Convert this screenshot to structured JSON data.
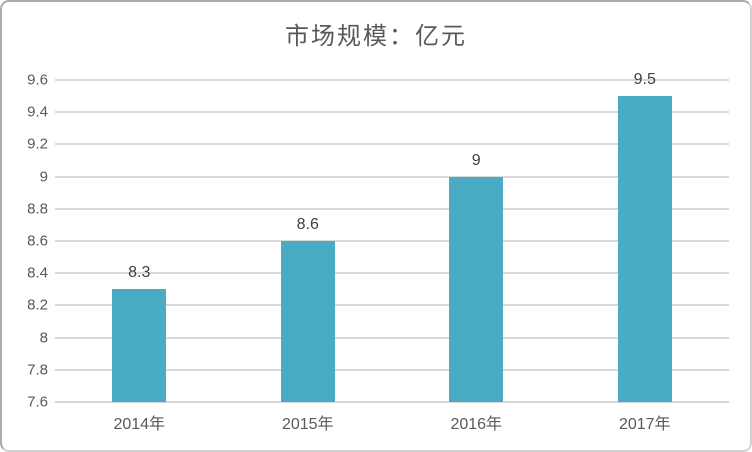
{
  "chart_data": {
    "type": "bar",
    "title": "市场规模：亿元",
    "categories": [
      "2014年",
      "2015年",
      "2016年",
      "2017年"
    ],
    "values": [
      8.3,
      8.6,
      9,
      9.5
    ],
    "data_labels": [
      "8.3",
      "8.6",
      "9",
      "9.5"
    ],
    "xlabel": "",
    "ylabel": "",
    "ylim": [
      7.6,
      9.6
    ],
    "y_tick_step": 0.2,
    "y_tick_labels": [
      "7.6",
      "7.8",
      "8",
      "8.2",
      "8.4",
      "8.6",
      "8.8",
      "9",
      "9.2",
      "9.4",
      "9.6"
    ],
    "grid": true,
    "legend": false,
    "colors": {
      "bar_fill": "#4aabc5",
      "gridline": "#d9d9d9",
      "axis_line": "#d6d6d6",
      "tick_label": "#595959",
      "data_label": "#3f3f3f",
      "title": "#595959",
      "chart_border": "#ababab"
    }
  }
}
